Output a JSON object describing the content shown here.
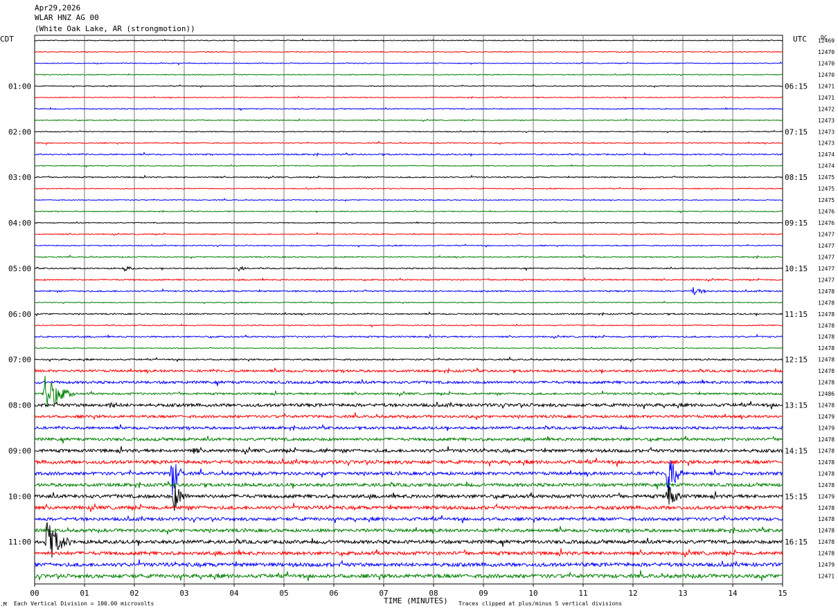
{
  "header": {
    "date": "Apr29,2026",
    "station": "WLAR HNZ AG 00",
    "location": "(White Oak Lake, AR (strongmotion))"
  },
  "chart_data": {
    "type": "helicorder",
    "title": "",
    "xlabel": "TIME (MINUTES)",
    "xlim": [
      0,
      15
    ],
    "x_ticks": [
      "00",
      "01",
      "02",
      "03",
      "04",
      "05",
      "06",
      "07",
      "08",
      "09",
      "10",
      "11",
      "12",
      "13",
      "14",
      "15"
    ],
    "left_tz": "CDT",
    "right_tz": "UTC",
    "dc_header": "DC",
    "rows_per_hour": 4,
    "row_count": 48,
    "trace_colors": [
      "#000000",
      "#ff0000",
      "#0000ff",
      "#007f00"
    ],
    "left_hour_labels": [
      "01:00",
      "02:00",
      "03:00",
      "04:00",
      "05:00",
      "06:00",
      "07:00",
      "08:00",
      "09:00",
      "10:00",
      "11:00"
    ],
    "right_hour_labels": [
      "06:15",
      "07:15",
      "08:15",
      "09:15",
      "10:15",
      "11:15",
      "12:15",
      "13:15",
      "14:15",
      "15:15",
      "16:15"
    ],
    "dc_values": [
      "12469",
      "12470",
      "12470",
      "12470",
      "12471",
      "12471",
      "12472",
      "12473",
      "12473",
      "12473",
      "12474",
      "12474",
      "12475",
      "12475",
      "12475",
      "12476",
      "12476",
      "12477",
      "12477",
      "12477",
      "12477",
      "12477",
      "12478",
      "12478",
      "12478",
      "12478",
      "12478",
      "12478",
      "12478",
      "12478",
      "12478",
      "12486",
      "12478",
      "12479",
      "12479",
      "12478",
      "12478",
      "12478",
      "12478",
      "12478",
      "12479",
      "12478",
      "12478",
      "12478",
      "12478",
      "12478",
      "12479",
      "12471"
    ],
    "noise_level": [
      0.6,
      0.6,
      0.6,
      0.6,
      0.6,
      0.6,
      0.7,
      0.6,
      0.6,
      0.7,
      0.9,
      0.6,
      0.8,
      0.6,
      0.6,
      0.6,
      0.6,
      0.7,
      0.7,
      0.8,
      0.8,
      0.9,
      1.0,
      0.6,
      0.9,
      0.7,
      1.0,
      0.6,
      1.0,
      1.6,
      1.8,
      1.4,
      2.2,
      1.8,
      1.8,
      2.0,
      2.2,
      2.4,
      2.2,
      2.2,
      2.4,
      2.4,
      2.2,
      2.2,
      2.4,
      2.4,
      2.6,
      2.6
    ],
    "events": [
      {
        "row": 20,
        "minute": 1.8,
        "amplitude": 4,
        "duration_min": 0.4
      },
      {
        "row": 20,
        "minute": 4.1,
        "amplitude": 4,
        "duration_min": 0.3
      },
      {
        "row": 22,
        "minute": 13.2,
        "amplitude": 6,
        "duration_min": 0.5
      },
      {
        "row": 31,
        "minute": 0.2,
        "amplitude": 30,
        "duration_min": 0.6
      },
      {
        "row": 32,
        "minute": 1.5,
        "amplitude": 5,
        "duration_min": 0.7
      },
      {
        "row": 36,
        "minute": 3.2,
        "amplitude": 6,
        "duration_min": 0.3
      },
      {
        "row": 36,
        "minute": 5.8,
        "amplitude": 6,
        "duration_min": 0.3
      },
      {
        "row": 38,
        "minute": 2.75,
        "amplitude": 38,
        "duration_min": 0.25
      },
      {
        "row": 40,
        "minute": 2.8,
        "amplitude": 24,
        "duration_min": 0.3
      },
      {
        "row": 38,
        "minute": 12.7,
        "amplitude": 40,
        "duration_min": 0.3
      },
      {
        "row": 40,
        "minute": 12.7,
        "amplitude": 26,
        "duration_min": 0.3
      },
      {
        "row": 44,
        "minute": 0.25,
        "amplitude": 36,
        "duration_min": 0.5
      }
    ]
  },
  "footer": {
    "scale_note": "Each Vertical Division =  100.00 microvolts",
    "clip_note": "Traces clipped at plus/minus 5 vertical divisions"
  }
}
